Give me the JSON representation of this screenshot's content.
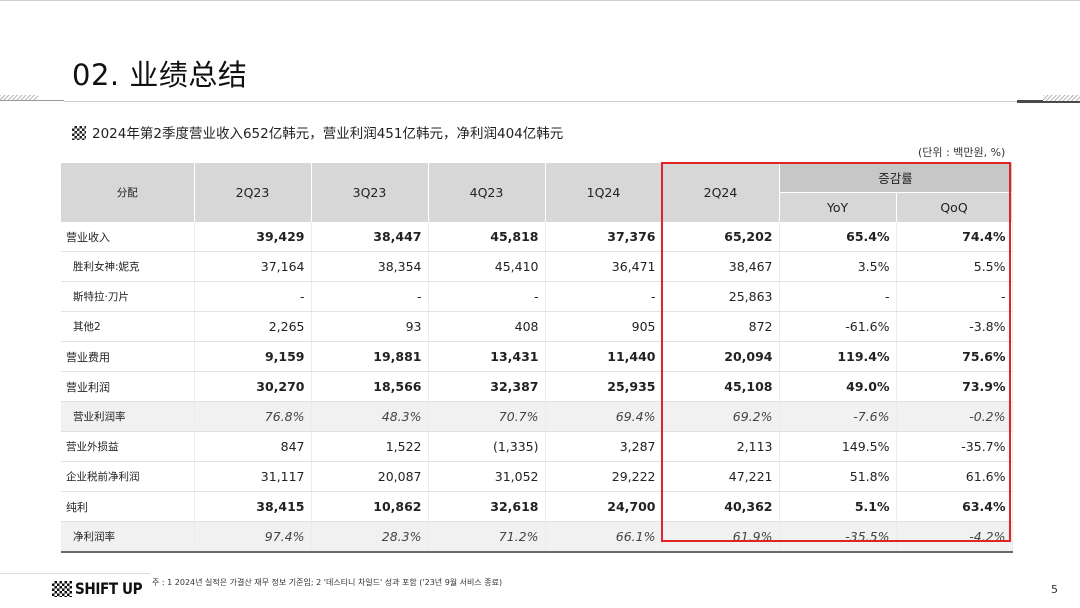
{
  "page": {
    "title": "02. 业绩总结",
    "subtitle": "2024年第2季度营业收入652亿韩元，营业利润451亿韩元，净利润404亿韩元",
    "unit": "(단위 : 백만원, %)",
    "footnote": "주 : 1 2024년 실적은 가결산 재무 정보 기준임; 2 '데스티니 차일드' 성과 포함 ('23년 9월 서비스 종료)",
    "page_number": "5",
    "logo_text": "SHIFT UP",
    "highlight_color": "#e02424"
  },
  "table": {
    "corner": "分配",
    "headers": [
      "2Q23",
      "3Q23",
      "4Q23",
      "1Q24",
      "2Q24"
    ],
    "change_header": "증감률",
    "change_subheaders": [
      "YoY",
      "QoQ"
    ],
    "rows": [
      {
        "label": "营业收入",
        "cells": [
          "39,429",
          "38,447",
          "45,818",
          "37,376",
          "65,202",
          "65.4%",
          "74.4%"
        ]
      },
      {
        "label": "胜利女神:妮克",
        "cells": [
          "37,164",
          "38,354",
          "45,410",
          "36,471",
          "38,467",
          "3.5%",
          "5.5%"
        ]
      },
      {
        "label": "斯特拉·刀片",
        "cells": [
          "-",
          "-",
          "-",
          "-",
          "25,863",
          "-",
          "-"
        ]
      },
      {
        "label": "其他2",
        "cells": [
          "2,265",
          "93",
          "408",
          "905",
          "872",
          "-61.6%",
          "-3.8%"
        ]
      },
      {
        "label": "营业费用",
        "cells": [
          "9,159",
          "19,881",
          "13,431",
          "11,440",
          "20,094",
          "119.4%",
          "75.6%"
        ]
      },
      {
        "label": "营业利润",
        "cells": [
          "30,270",
          "18,566",
          "32,387",
          "25,935",
          "45,108",
          "49.0%",
          "73.9%"
        ]
      },
      {
        "label": "营业利润率",
        "cells": [
          "76.8%",
          "48.3%",
          "70.7%",
          "69.4%",
          "69.2%",
          "-7.6%",
          "-0.2%"
        ]
      },
      {
        "label": "营业外损益",
        "cells": [
          "847",
          "1,522",
          "(1,335)",
          "3,287",
          "2,113",
          "149.5%",
          "-35.7%"
        ]
      },
      {
        "label": "企业税前净利润",
        "cells": [
          "31,117",
          "20,087",
          "31,052",
          "29,222",
          "47,221",
          "51.8%",
          "61.6%"
        ]
      },
      {
        "label": "纯利",
        "cells": [
          "38,415",
          "10,862",
          "32,618",
          "24,700",
          "40,362",
          "5.1%",
          "63.4%"
        ]
      },
      {
        "label": "净利润率",
        "cells": [
          "97.4%",
          "28.3%",
          "71.2%",
          "66.1%",
          "61.9%",
          "-35.5%",
          "-4.2%"
        ]
      }
    ]
  }
}
